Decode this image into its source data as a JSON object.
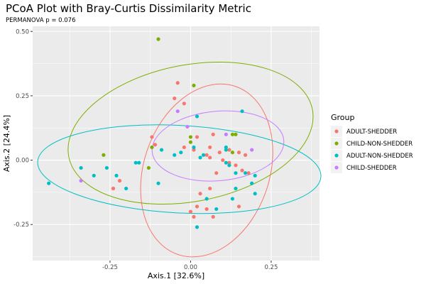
{
  "chart_data": {
    "type": "scatter",
    "title": "PCoA Plot with Bray-Curtis Dissimilarity Metric",
    "subtitle": "PERMANOVA p = 0.076",
    "xlabel": "Axis.1   [32.6%]",
    "ylabel": "Axis.2   [24.4%]",
    "xlim": [
      -0.49,
      0.4
    ],
    "ylim": [
      -0.39,
      0.52
    ],
    "x_ticks": [
      {
        "value": -0.25,
        "label": "-0.25"
      },
      {
        "value": 0,
        "label": "0.00"
      },
      {
        "value": 0.25,
        "label": "0.25"
      }
    ],
    "y_ticks": [
      {
        "value": -0.25,
        "label": "-0.25"
      },
      {
        "value": 0,
        "label": "0.00"
      },
      {
        "value": 0.25,
        "label": "0.25"
      },
      {
        "value": 0.5,
        "label": "0.50"
      }
    ],
    "grid": true,
    "legend": {
      "title": "Group",
      "position": "right"
    },
    "series": [
      {
        "name": "ADULT-SHEDDER",
        "color": "#F8766D",
        "points": [
          [
            -0.05,
            0.24
          ],
          [
            -0.04,
            0.3
          ],
          [
            -0.02,
            0.22
          ],
          [
            -0.12,
            0.09
          ],
          [
            -0.11,
            0.06
          ],
          [
            0.01,
            0.04
          ],
          [
            0.02,
            0.09
          ],
          [
            0.06,
            0.05
          ],
          [
            0.07,
            0.1
          ],
          [
            0.05,
            0.02
          ],
          [
            0.09,
            0.03
          ],
          [
            0.06,
            0.01
          ],
          [
            0.1,
            0.0
          ],
          [
            0.12,
            0.04
          ],
          [
            0.15,
            0.03
          ],
          [
            0.17,
            0.02
          ],
          [
            0.12,
            -0.01
          ],
          [
            0.14,
            -0.02
          ],
          [
            0.18,
            -0.05
          ],
          [
            0.16,
            -0.04
          ],
          [
            0.08,
            -0.05
          ],
          [
            0.06,
            -0.11
          ],
          [
            0.0,
            -0.2
          ],
          [
            0.02,
            -0.18
          ],
          [
            0.01,
            -0.22
          ],
          [
            0.05,
            -0.19
          ],
          [
            0.07,
            -0.22
          ],
          [
            0.03,
            -0.13
          ],
          [
            -0.24,
            -0.11
          ],
          [
            -0.22,
            -0.08
          ],
          [
            -0.02,
            0.05
          ],
          [
            0.15,
            -0.18
          ]
        ]
      },
      {
        "name": "CHILD-NON-SHEDDER",
        "color": "#7CAE00",
        "points": [
          [
            -0.1,
            0.47
          ],
          [
            0.01,
            0.29
          ],
          [
            -0.27,
            0.02
          ],
          [
            -0.13,
            -0.03
          ],
          [
            -0.12,
            0.05
          ],
          [
            0.0,
            0.09
          ],
          [
            0.13,
            0.1
          ],
          [
            0.14,
            0.1
          ],
          [
            0.13,
            0.03
          ],
          [
            0.0,
            0.07
          ]
        ]
      },
      {
        "name": "ADULT-NON-SHEDDER",
        "color": "#00BFC4",
        "points": [
          [
            -0.44,
            -0.09
          ],
          [
            -0.34,
            -0.03
          ],
          [
            -0.3,
            -0.06
          ],
          [
            -0.26,
            -0.03
          ],
          [
            -0.23,
            -0.06
          ],
          [
            -0.2,
            -0.11
          ],
          [
            -0.17,
            -0.01
          ],
          [
            -0.16,
            -0.01
          ],
          [
            -0.1,
            -0.09
          ],
          [
            -0.09,
            0.04
          ],
          [
            -0.05,
            0.02
          ],
          [
            -0.03,
            0.03
          ],
          [
            0.01,
            0.05
          ],
          [
            0.03,
            0.01
          ],
          [
            0.02,
            0.17
          ],
          [
            0.04,
            0.02
          ],
          [
            0.11,
            0.04
          ],
          [
            0.11,
            0.05
          ],
          [
            0.11,
            -0.01
          ],
          [
            0.12,
            -0.02
          ],
          [
            0.14,
            -0.05
          ],
          [
            0.14,
            -0.11
          ],
          [
            0.17,
            -0.05
          ],
          [
            0.19,
            -0.09
          ],
          [
            0.2,
            -0.06
          ],
          [
            0.2,
            -0.13
          ],
          [
            0.16,
            0.19
          ],
          [
            0.05,
            -0.15
          ],
          [
            0.08,
            -0.19
          ],
          [
            0.02,
            -0.26
          ],
          [
            0.13,
            -0.15
          ]
        ]
      },
      {
        "name": "CHILD-SHEDDER",
        "color": "#C77CFF",
        "points": [
          [
            -0.34,
            -0.08
          ],
          [
            -0.04,
            0.19
          ],
          [
            -0.01,
            0.13
          ],
          [
            0.11,
            0.1
          ],
          [
            0.19,
            0.04
          ]
        ]
      }
    ],
    "ellipses": [
      {
        "series": "ADULT-SHEDDER",
        "cx": 0.05,
        "cy": -0.04,
        "rx": 0.195,
        "ry": 0.345,
        "angle_deg": 19
      },
      {
        "series": "CHILD-NON-SHEDDER",
        "cx": 0.0,
        "cy": 0.105,
        "rx": 0.385,
        "ry": 0.265,
        "angle_deg": -11
      },
      {
        "series": "ADULT-NON-SHEDDER",
        "cx": -0.035,
        "cy": -0.035,
        "rx": 0.44,
        "ry": 0.17,
        "angle_deg": 3
      },
      {
        "series": "CHILD-SHEDDER",
        "cx": 0.085,
        "cy": 0.055,
        "rx": 0.205,
        "ry": 0.135,
        "angle_deg": -5
      }
    ]
  }
}
